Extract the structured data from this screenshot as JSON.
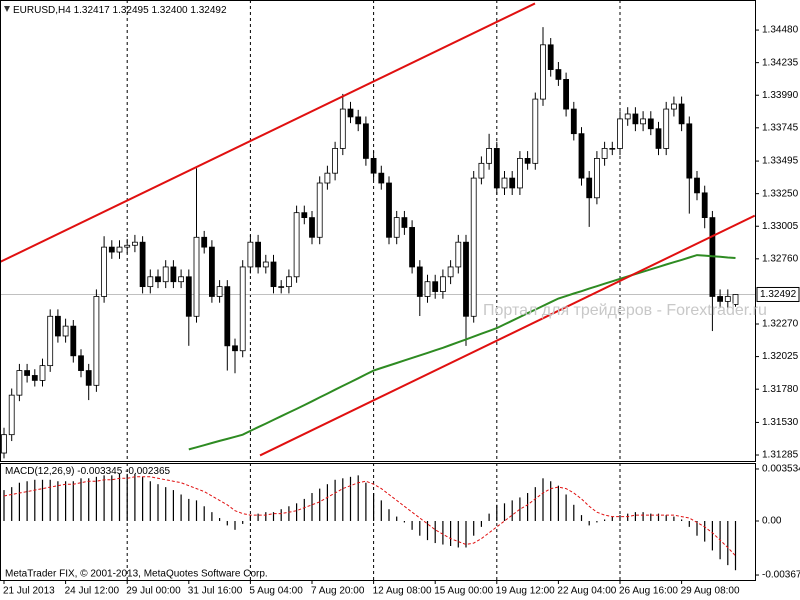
{
  "chart_data": {
    "type": "candlestick",
    "header": {
      "symbol": "EURUSD,H4",
      "ohlc": [
        "1.32417",
        "1.32495",
        "1.32400",
        "1.32492"
      ]
    },
    "categories": [
      "21 Jul 2013",
      null,
      null,
      null,
      null,
      null,
      null,
      null,
      "24 Jul 12:00",
      null,
      null,
      null,
      null,
      null,
      null,
      null,
      "29 Jul 00:00",
      null,
      null,
      null,
      null,
      null,
      null,
      null,
      "31 Jul 16:00",
      null,
      null,
      null,
      null,
      null,
      null,
      null,
      "5 Aug 04:00",
      null,
      null,
      null,
      null,
      null,
      null,
      null,
      "7 Aug 20:00",
      null,
      null,
      null,
      null,
      null,
      null,
      null,
      "12 Aug 08:00",
      null,
      null,
      null,
      null,
      null,
      null,
      null,
      "15 Aug 00:00",
      null,
      null,
      null,
      null,
      null,
      null,
      null,
      "19 Aug 12:00",
      null,
      null,
      null,
      null,
      null,
      null,
      null,
      "22 Aug 04:00",
      null,
      null,
      null,
      null,
      null,
      null,
      null,
      "26 Aug 16:00",
      null,
      null,
      null,
      null,
      null,
      null,
      null,
      "29 Aug 08:00",
      null,
      null,
      null,
      null,
      null,
      null,
      null
    ],
    "open": [
      1.313,
      1.31438,
      1.31735,
      1.3192,
      1.31883,
      1.31846,
      1.31957,
      1.32328,
      1.3218,
      1.32254,
      1.32031,
      1.3192,
      1.31809,
      1.32477,
      1.32848,
      1.32811,
      1.32848,
      1.32862,
      1.32885,
      1.32551,
      1.32625,
      1.32588,
      1.32699,
      1.32588,
      1.32625,
      1.32328,
      1.32922,
      1.32848,
      1.32477,
      1.32551,
      1.32106,
      1.32069,
      1.32699,
      1.32885,
      1.32699,
      1.32736,
      1.32551,
      1.32551,
      1.32625,
      1.33107,
      1.3307,
      1.32922,
      1.3333,
      1.33404,
      1.3359,
      1.33886,
      1.33827,
      1.33775,
      1.33515,
      1.33404,
      1.3333,
      1.32922,
      1.3307,
      1.32996,
      1.32699,
      1.32477,
      1.32588,
      1.32514,
      1.32625,
      1.32699,
      1.32885,
      1.32328,
      1.33367,
      1.33478,
      1.3359,
      1.33293,
      1.33367,
      1.33293,
      1.33515,
      1.33478,
      1.33961,
      1.34369,
      1.34183,
      1.34109,
      1.33886,
      1.33701,
      1.33367,
      1.33219,
      1.33515,
      1.3359,
      1.3359,
      1.33812,
      1.33849,
      1.33775,
      1.33812,
      1.33738,
      1.3359,
      1.33886,
      1.33924,
      1.33775,
      1.33367,
      1.33256,
      1.3307,
      1.32477,
      1.3244,
      1.32417
    ],
    "high": [
      1.3149,
      1.31785,
      1.3197,
      1.3197,
      1.3193,
      1.3201,
      1.3238,
      1.3238,
      1.3231,
      1.323,
      1.3208,
      1.3197,
      1.3253,
      1.3293,
      1.329,
      1.329,
      1.3291,
      1.3294,
      1.3293,
      1.3268,
      1.3268,
      1.3275,
      1.3275,
      1.3268,
      1.3268,
      1.33441,
      1.3297,
      1.329,
      1.326,
      1.326,
      1.3216,
      1.3275,
      1.3294,
      1.3294,
      1.3279,
      1.3279,
      1.326,
      1.3268,
      1.3316,
      1.3316,
      1.3312,
      1.3338,
      1.3346,
      1.3364,
      1.34,
      1.3394,
      1.3388,
      1.3383,
      1.3357,
      1.3346,
      1.3338,
      1.3312,
      1.3312,
      1.3305,
      1.3275,
      1.3264,
      1.3264,
      1.3268,
      1.3275,
      1.3294,
      1.3294,
      1.3342,
      1.3353,
      1.337,
      1.3364,
      1.3342,
      1.3342,
      1.3357,
      1.3357,
      1.3401,
      1.34502,
      1.3442,
      1.3424,
      1.3416,
      1.3394,
      1.3375,
      1.3342,
      1.3357,
      1.3364,
      1.3364,
      1.3387,
      1.339,
      1.339,
      1.3387,
      1.3387,
      1.3379,
      1.3394,
      1.3398,
      1.3398,
      1.3383,
      1.3342,
      1.3331,
      1.3312,
      1.3253,
      1.3253,
      1.32495
    ],
    "low": [
      1.3126,
      1.3139,
      1.3169,
      1.3183,
      1.318,
      1.318,
      1.3191,
      1.3213,
      1.3213,
      1.3198,
      1.3187,
      1.31698,
      1.3176,
      1.3243,
      1.3276,
      1.3276,
      1.328,
      1.3281,
      1.325,
      1.325,
      1.3254,
      1.3254,
      1.3254,
      1.3254,
      1.32106,
      1.3228,
      1.328,
      1.3243,
      1.3243,
      1.3192,
      1.319,
      1.3202,
      1.3265,
      1.3265,
      1.3265,
      1.325,
      1.325,
      1.325,
      1.3258,
      1.3302,
      1.3287,
      1.3287,
      1.3328,
      1.3335,
      1.3354,
      1.3378,
      1.3372,
      1.3346,
      1.3335,
      1.3328,
      1.3287,
      1.3287,
      1.3294,
      1.3265,
      1.3233,
      1.3243,
      1.3246,
      1.3246,
      1.3257,
      1.3265,
      1.32106,
      1.3228,
      1.3332,
      1.3343,
      1.3324,
      1.3324,
      1.3324,
      1.3324,
      1.3343,
      1.3343,
      1.3391,
      1.3413,
      1.3406,
      1.3383,
      1.3365,
      1.3331,
      1.33,
      1.3317,
      1.3346,
      1.3354,
      1.3354,
      1.3376,
      1.3372,
      1.3372,
      1.3369,
      1.3354,
      1.3354,
      1.3383,
      1.3372,
      1.331,
      1.332,
      1.3299,
      1.32217,
      1.3239,
      1.3239,
      1.324
    ],
    "close": [
      1.31438,
      1.31735,
      1.3192,
      1.31883,
      1.31846,
      1.31957,
      1.32328,
      1.3218,
      1.32254,
      1.32031,
      1.3192,
      1.31809,
      1.32477,
      1.32848,
      1.32811,
      1.32848,
      1.32862,
      1.32885,
      1.32551,
      1.32625,
      1.32588,
      1.32699,
      1.32588,
      1.32625,
      1.32328,
      1.32922,
      1.32848,
      1.32477,
      1.32551,
      1.32106,
      1.32069,
      1.32699,
      1.32885,
      1.32699,
      1.32736,
      1.32551,
      1.32551,
      1.32625,
      1.33107,
      1.3307,
      1.32922,
      1.3333,
      1.33404,
      1.3359,
      1.33886,
      1.33827,
      1.33775,
      1.33515,
      1.33404,
      1.3333,
      1.32922,
      1.3307,
      1.32996,
      1.32699,
      1.32477,
      1.32588,
      1.32514,
      1.32625,
      1.32699,
      1.32885,
      1.32328,
      1.33367,
      1.33478,
      1.3359,
      1.33293,
      1.33367,
      1.33293,
      1.33515,
      1.33478,
      1.33961,
      1.34369,
      1.34183,
      1.34109,
      1.33886,
      1.33701,
      1.33367,
      1.33219,
      1.33515,
      1.3359,
      1.3359,
      1.33812,
      1.33849,
      1.33775,
      1.33812,
      1.33738,
      1.3359,
      1.33886,
      1.33924,
      1.33775,
      1.33367,
      1.33256,
      1.3307,
      1.32477,
      1.3244,
      1.32477,
      1.32492
    ],
    "bull_color": "#ffffff",
    "bear_color": "#000000",
    "outline_color": "#000000",
    "ylim": [
      1.3124,
      1.34706
    ],
    "yticks": [
      {
        "value": 1.3448,
        "label": "1.34480"
      },
      1.34235,
      {
        "value": 1.3399,
        "label": "1.33990"
      },
      1.33745,
      1.33495,
      {
        "value": 1.3325,
        "label": "1.33250"
      },
      1.33005,
      {
        "value": 1.3276,
        "label": "1.32760"
      },
      {
        "value": 1.3227,
        "label": "1.32270"
      },
      1.32025,
      {
        "value": 1.3178,
        "label": "1.31780"
      },
      {
        "value": 1.3153,
        "label": "1.31530"
      },
      1.31285
    ],
    "ma": {
      "color": "#2e8b22",
      "values": [
        null,
        null,
        null,
        null,
        null,
        null,
        null,
        null,
        null,
        null,
        null,
        null,
        null,
        null,
        null,
        null,
        null,
        null,
        null,
        null,
        null,
        null,
        null,
        null,
        1.31327,
        1.31343,
        1.31359,
        1.31375,
        1.31391,
        1.31406,
        1.31422,
        1.31438,
        1.31466,
        1.31494,
        1.31521,
        1.31549,
        1.31577,
        1.31605,
        1.31632,
        1.3166,
        1.31689,
        1.31718,
        1.31747,
        1.31776,
        1.31805,
        1.31833,
        1.31862,
        1.31891,
        1.3192,
        1.31939,
        1.31958,
        1.31977,
        1.31996,
        1.32015,
        1.32034,
        1.32053,
        1.32072,
        1.32091,
        1.32112,
        1.32133,
        1.32154,
        1.32175,
        1.32197,
        1.32218,
        1.32239,
        1.32267,
        1.32295,
        1.32323,
        1.32351,
        1.32378,
        1.32406,
        1.32434,
        1.32462,
        1.3248,
        1.32499,
        1.32517,
        1.32536,
        1.32554,
        1.32573,
        1.32591,
        1.3261,
        1.32628,
        1.32646,
        1.32663,
        1.32681,
        1.32699,
        1.32717,
        1.32735,
        1.32752,
        1.3277,
        1.32788,
        1.32784,
        1.32779,
        1.32775,
        1.3277,
        1.32766
      ]
    },
    "trendlines": [
      {
        "color": "#e01010",
        "points": [
          [
            -0.52,
            1.32736
          ],
          [
            68.96,
            1.3468
          ]
        ]
      },
      {
        "color": "#e01010",
        "points": [
          [
            33.25,
            1.31282
          ],
          [
            97.5,
            1.33085
          ]
        ]
      }
    ],
    "watermark": "Портал для трейдеров - Forextrader.ru",
    "indicator": {
      "name": "MACD(12,26,9)",
      "histogram_color": "#000000",
      "signal_color": "#e01010",
      "histogram": [
        0.0021,
        0.0023,
        0.0026,
        0.0027,
        0.0028,
        0.0028,
        0.0028,
        0.0027,
        0.0027,
        0.0027,
        0.0029,
        0.0029,
        0.003,
        0.0031,
        0.0031,
        0.0032,
        0.0032,
        0.0032,
        0.003,
        0.0027,
        0.0025,
        0.0023,
        0.0021,
        0.0018,
        0.0015,
        0.0014,
        0.001,
        0.0006,
        0.0002,
        -0.0003,
        -0.0006,
        -0.0002,
        0.0004,
        0.0005,
        0.0006,
        0.0006,
        0.0008,
        0.001,
        0.0012,
        0.0015,
        0.0019,
        0.0022,
        0.0025,
        0.0028,
        0.0029,
        0.003,
        0.0031,
        0.0026,
        0.0019,
        0.0014,
        0.0008,
        0.0003,
        -0.0001,
        -0.0006,
        -0.001,
        -0.0013,
        -0.0015,
        -0.0016,
        -0.0017,
        -0.0018,
        -0.0018,
        -0.001,
        -0.0004,
        0.0005,
        0.0011,
        0.0012,
        0.0014,
        0.0016,
        0.0019,
        0.0023,
        0.0029,
        0.0027,
        0.0024,
        0.0018,
        0.0011,
        0.0004,
        -0.0003,
        -0.0001,
        0.0001,
        0.0003,
        0.0004,
        0.0005,
        0.0006,
        0.0006,
        0.0005,
        0.0005,
        0.0004,
        0.0003,
        0.0001,
        -0.0004,
        -0.001,
        -0.0014,
        -0.002,
        -0.0026,
        -0.003,
        -0.003345
      ],
      "signal": [
        0.0017,
        0.0018,
        0.0019,
        0.002,
        0.0021,
        0.0022,
        0.0023,
        0.0024,
        0.0025,
        0.0025,
        0.0026,
        0.0027,
        0.0027,
        0.0028,
        0.0028,
        0.0029,
        0.0029,
        0.003,
        0.003,
        0.003,
        0.0029,
        0.0028,
        0.0027,
        0.0026,
        0.0024,
        0.0022,
        0.002,
        0.0017,
        0.0014,
        0.0011,
        0.0007,
        0.0005,
        0.0004,
        0.0004,
        0.0004,
        0.0005,
        0.0005,
        0.0006,
        0.0007,
        0.0009,
        0.0011,
        0.0013,
        0.0016,
        0.0019,
        0.0022,
        0.0024,
        0.0026,
        0.0027,
        0.0025,
        0.0022,
        0.0018,
        0.0014,
        0.001,
        0.0006,
        0.0002,
        -0.0002,
        -0.0006,
        -0.0009,
        -0.0012,
        -0.0014,
        -0.0016,
        -0.0015,
        -0.0012,
        -0.0008,
        -0.0004,
        0.0,
        0.0004,
        0.0008,
        0.0011,
        0.0015,
        0.0019,
        0.0022,
        0.0023,
        0.0022,
        0.0019,
        0.0015,
        0.001,
        0.0006,
        0.0004,
        0.0003,
        0.0003,
        0.0003,
        0.0004,
        0.0004,
        0.0004,
        0.0004,
        0.0004,
        0.0004,
        0.0003,
        0.0002,
        -0.0001,
        -0.0004,
        -0.0008,
        -0.0013,
        -0.0018,
        -0.002365
      ],
      "ylim": [
        -0.00401,
        0.00394
      ],
      "yticks": [
        0.003534,
        {
          "value": 0,
          "label": "0.00"
        },
        -0.003672
      ]
    },
    "copyright": "MetaTrader FIX, © 2001-2013, MetaQuotes Software Corp."
  }
}
